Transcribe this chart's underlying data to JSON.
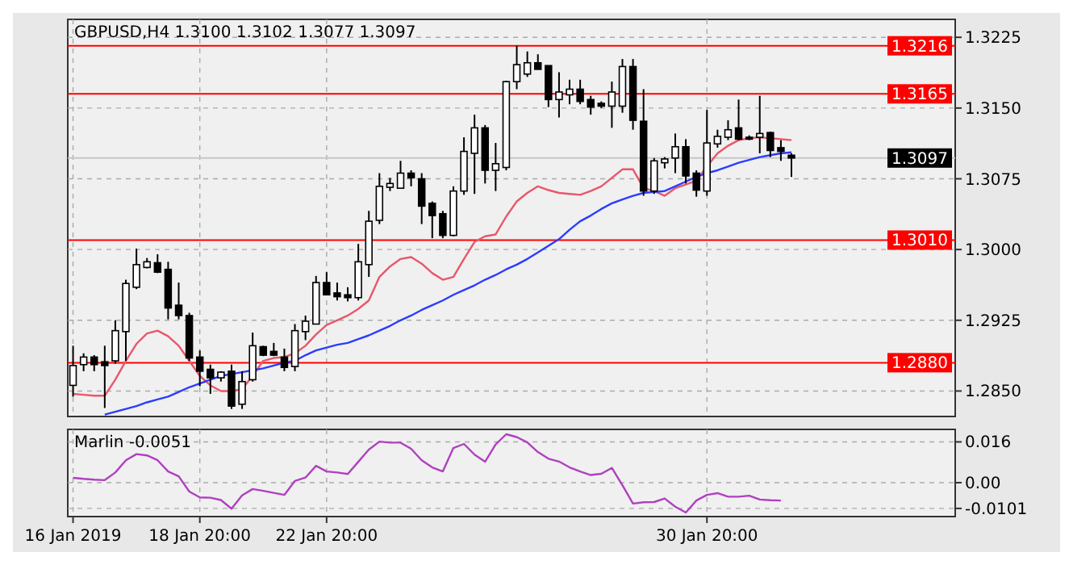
{
  "chart_data": [
    {
      "type": "candlestick",
      "title": "GBPUSD,H4 1.3100 1.3102 1.3077 1.3097",
      "grid": true,
      "tick_labels": "y",
      "categories": [
        null,
        null,
        null,
        null,
        null,
        null,
        null,
        null,
        null,
        null,
        null,
        null,
        null,
        null,
        null,
        null,
        null,
        null,
        null,
        null,
        null,
        null,
        null,
        null,
        null,
        null,
        null,
        null,
        null,
        null,
        null,
        null,
        null,
        null,
        null,
        null,
        null,
        null,
        null,
        null,
        null,
        null,
        null,
        null,
        null,
        null,
        null,
        null,
        null,
        null,
        null,
        null,
        null,
        null,
        null,
        null,
        null,
        null,
        null,
        null,
        null,
        null,
        null,
        null,
        null,
        null,
        null,
        null,
        null,
        null,
        null,
        null,
        null,
        null,
        null,
        null,
        null,
        null,
        null,
        null,
        null,
        null,
        null,
        null
      ],
      "ylim": [
        1.2823,
        1.3244
      ],
      "yticks": [
        {
          "value": 1.285,
          "label": "1.2850"
        },
        {
          "value": 1.2925,
          "label": "1.2925"
        },
        {
          "value": 1.3,
          "label": "1.3000"
        },
        {
          "value": 1.3075,
          "label": "1.3075"
        },
        {
          "value": 1.315,
          "label": "1.3150"
        },
        {
          "value": 1.3225,
          "label": "1.3225"
        }
      ],
      "ohlc": [
        [
          1.2856,
          1.2898,
          1.2844,
          1.2877
        ],
        [
          1.2878,
          1.289,
          1.2871,
          1.2886
        ],
        [
          1.2886,
          1.2888,
          1.2871,
          1.2878
        ],
        [
          1.2881,
          1.2898,
          1.2832,
          1.2877
        ],
        [
          1.2882,
          1.2925,
          1.2879,
          1.2914
        ],
        [
          1.2913,
          1.2968,
          1.2882,
          1.2964
        ],
        [
          1.296,
          1.3001,
          1.2958,
          1.2984
        ],
        [
          1.2981,
          1.2991,
          1.298,
          1.2987
        ],
        [
          1.2986,
          1.2995,
          1.2975,
          1.2976
        ],
        [
          1.2979,
          1.2987,
          1.2926,
          1.2938
        ],
        [
          1.2941,
          1.2965,
          1.2926,
          1.293
        ],
        [
          1.293,
          1.2933,
          1.2882,
          1.2885
        ],
        [
          1.2886,
          1.2893,
          1.2855,
          1.2871
        ],
        [
          1.2873,
          1.2878,
          1.2847,
          1.2864
        ],
        [
          1.2864,
          1.2871,
          1.286,
          1.287
        ],
        [
          1.2871,
          1.2878,
          1.2831,
          1.2834
        ],
        [
          1.2836,
          1.2871,
          1.2831,
          1.286
        ],
        [
          1.2862,
          1.2912,
          1.286,
          1.2898
        ],
        [
          1.2897,
          1.2898,
          1.2887,
          1.2888
        ],
        [
          1.2892,
          1.2901,
          1.2887,
          1.2888
        ],
        [
          1.2886,
          1.2895,
          1.2871,
          1.2875
        ],
        [
          1.2876,
          1.2921,
          1.2871,
          1.2914
        ],
        [
          1.2913,
          1.293,
          1.2904,
          1.2924
        ],
        [
          1.2921,
          1.2972,
          1.2921,
          1.2965
        ],
        [
          1.2965,
          1.2976,
          1.2952,
          1.2952
        ],
        [
          1.2954,
          1.2965,
          1.2946,
          1.295
        ],
        [
          1.2952,
          1.296,
          1.2945,
          1.2949
        ],
        [
          1.2949,
          1.3006,
          1.2946,
          1.2987
        ],
        [
          1.2984,
          1.3041,
          1.2971,
          1.303
        ],
        [
          1.3031,
          1.3081,
          1.3027,
          1.3067
        ],
        [
          1.3066,
          1.3076,
          1.3062,
          1.307
        ],
        [
          1.3065,
          1.3094,
          1.3065,
          1.3081
        ],
        [
          1.3081,
          1.3084,
          1.3067,
          1.3076
        ],
        [
          1.3075,
          1.3081,
          1.3027,
          1.3046
        ],
        [
          1.3049,
          1.3051,
          1.3012,
          1.3036
        ],
        [
          1.3038,
          1.3041,
          1.3012,
          1.3015
        ],
        [
          1.3015,
          1.3067,
          1.3014,
          1.3062
        ],
        [
          1.3062,
          1.3119,
          1.3058,
          1.3104
        ],
        [
          1.3102,
          1.3143,
          1.3059,
          1.3129
        ],
        [
          1.3129,
          1.3132,
          1.307,
          1.3084
        ],
        [
          1.3084,
          1.3113,
          1.3062,
          1.3091
        ],
        [
          1.3087,
          1.3179,
          1.3084,
          1.3178
        ],
        [
          1.3178,
          1.3216,
          1.317,
          1.3196
        ],
        [
          1.3186,
          1.321,
          1.3183,
          1.3198
        ],
        [
          1.3198,
          1.3207,
          1.3191,
          1.3191
        ],
        [
          1.3195,
          1.3195,
          1.3151,
          1.3159
        ],
        [
          1.3159,
          1.3188,
          1.314,
          1.3167
        ],
        [
          1.3164,
          1.318,
          1.3154,
          1.317
        ],
        [
          1.317,
          1.318,
          1.3154,
          1.3157
        ],
        [
          1.3159,
          1.3163,
          1.3143,
          1.3151
        ],
        [
          1.3155,
          1.3157,
          1.315,
          1.3152
        ],
        [
          1.3152,
          1.3178,
          1.3129,
          1.3167
        ],
        [
          1.3152,
          1.3202,
          1.3145,
          1.3194
        ],
        [
          1.3194,
          1.3202,
          1.3127,
          1.3137
        ],
        [
          1.3136,
          1.317,
          1.3057,
          1.3062
        ],
        [
          1.3062,
          1.3097,
          1.3059,
          1.3094
        ],
        [
          1.3092,
          1.3098,
          1.3086,
          1.3096
        ],
        [
          1.3097,
          1.3123,
          1.3081,
          1.3109
        ],
        [
          1.3109,
          1.3117,
          1.307,
          1.3078
        ],
        [
          1.3081,
          1.3084,
          1.3056,
          1.3063
        ],
        [
          1.3062,
          1.3148,
          1.3057,
          1.3113
        ],
        [
          1.3112,
          1.3127,
          1.3108,
          1.312
        ],
        [
          1.3119,
          1.3137,
          1.3116,
          1.3127
        ],
        [
          1.3129,
          1.3159,
          1.3116,
          1.3117
        ],
        [
          1.3119,
          1.3121,
          1.3116,
          1.3117
        ],
        [
          1.3119,
          1.3163,
          1.3102,
          1.3123
        ],
        [
          1.3124,
          1.3125,
          1.3098,
          1.3105
        ],
        [
          1.3108,
          1.3116,
          1.3094,
          1.3104
        ],
        [
          1.31,
          1.3102,
          1.3077,
          1.3097
        ],
        null,
        null,
        null,
        null,
        null,
        null,
        null,
        null,
        null,
        null,
        null,
        null,
        null,
        null,
        null
      ],
      "series": [
        {
          "type": "line",
          "color": "#e8576a",
          "values": [
            1.2847,
            1.2846,
            1.2845,
            1.2845,
            1.2862,
            1.2882,
            1.29,
            1.2911,
            1.2914,
            1.2908,
            1.2898,
            1.2882,
            1.2866,
            1.2856,
            1.285,
            1.285,
            1.2852,
            1.2866,
            1.2882,
            1.2885,
            1.2886,
            1.289,
            1.2898,
            1.291,
            1.292,
            1.2925,
            1.293,
            1.2937,
            1.2946,
            1.2971,
            1.2982,
            1.299,
            1.2992,
            1.2985,
            1.2975,
            1.2968,
            1.2971,
            1.299,
            1.3008,
            1.3014,
            1.3016,
            1.3035,
            1.3051,
            1.306,
            1.3067,
            1.3063,
            1.306,
            1.3059,
            1.3058,
            1.3062,
            1.3067,
            1.3076,
            1.3085,
            1.3085,
            1.3065,
            1.3062,
            1.3057,
            1.3065,
            1.3069,
            1.3073,
            1.3088,
            1.3102,
            1.311,
            1.3116,
            1.3118,
            1.3119,
            1.3118,
            1.3117,
            1.3116,
            null,
            null,
            null,
            null,
            null,
            null,
            null,
            null,
            null,
            null,
            null,
            null,
            null,
            null,
            null
          ]
        },
        {
          "type": "line",
          "color": "#2a3cff",
          "values": [
            null,
            null,
            null,
            1.2825,
            1.2828,
            1.2831,
            1.2834,
            1.2838,
            1.2841,
            1.2844,
            1.2849,
            1.2854,
            1.2858,
            1.2862,
            1.2866,
            1.2868,
            1.287,
            1.2872,
            1.2874,
            1.2877,
            1.288,
            1.2882,
            1.2888,
            1.2893,
            1.2896,
            1.2899,
            1.2901,
            1.2905,
            1.2909,
            1.2914,
            1.2919,
            1.2925,
            1.293,
            1.2936,
            1.2941,
            1.2946,
            1.2952,
            1.2957,
            1.2962,
            1.2968,
            1.2973,
            1.2979,
            1.2984,
            1.299,
            1.2997,
            1.3004,
            1.3011,
            1.3021,
            1.303,
            1.3036,
            1.3043,
            1.3049,
            1.3053,
            1.3057,
            1.306,
            1.3061,
            1.3062,
            1.3067,
            1.3072,
            1.3077,
            1.3081,
            1.3084,
            1.3088,
            1.3092,
            1.3095,
            1.3098,
            1.31,
            1.3102,
            1.3103,
            null,
            null,
            null,
            null,
            null,
            null,
            null,
            null,
            null,
            null,
            null,
            null,
            null,
            null,
            null
          ]
        }
      ],
      "ref_lines": [
        {
          "axis": "y",
          "value": 1.3216,
          "label": "1.3216",
          "color": "#ff0000"
        },
        {
          "axis": "y",
          "value": 1.3165,
          "label": "1.3165",
          "color": "#ff0000"
        },
        {
          "axis": "y",
          "value": 1.301,
          "label": "1.3010",
          "color": "#ff0000"
        },
        {
          "axis": "y",
          "value": 1.288,
          "label": "1.2880",
          "color": "#ff0000"
        },
        {
          "axis": "y",
          "value": 1.3097,
          "label": "1.3097",
          "color": "#c8c8c8"
        }
      ]
    },
    {
      "type": "line",
      "title": "Marlin -0.0051",
      "grid": true,
      "categories": [
        "16 Jan 2019",
        null,
        null,
        null,
        null,
        null,
        null,
        null,
        null,
        null,
        null,
        null,
        "18 Jan 20:00",
        null,
        null,
        null,
        null,
        null,
        null,
        null,
        null,
        null,
        null,
        null,
        "22 Jan 20:00",
        null,
        null,
        null,
        null,
        null,
        null,
        null,
        null,
        null,
        null,
        null,
        null,
        null,
        null,
        null,
        null,
        null,
        null,
        null,
        null,
        null,
        null,
        null,
        null,
        null,
        null,
        null,
        null,
        null,
        null,
        null,
        null,
        null,
        null,
        null,
        "30 Jan 20:00",
        null,
        null,
        null,
        null,
        null,
        null,
        null,
        null,
        null,
        null,
        null,
        null,
        null,
        null,
        null,
        null,
        null,
        null,
        null,
        null,
        null,
        null,
        null
      ],
      "ylim": [
        -0.0133,
        0.0209
      ],
      "yticks": [
        {
          "value": -0.0101,
          "label": "-0.0101"
        },
        {
          "value": 0,
          "label": "0.00"
        },
        {
          "value": 0.016,
          "label": "0.016"
        }
      ],
      "series": [
        {
          "color": "#b040c0",
          "values": [
            0.0019,
            0.0015,
            0.0012,
            0.001,
            0.004,
            0.0088,
            0.0112,
            0.0107,
            0.0088,
            0.0044,
            0.0025,
            -0.0035,
            -0.0058,
            -0.0059,
            -0.0068,
            -0.0102,
            -0.005,
            -0.0025,
            -0.0032,
            -0.004,
            -0.0048,
            0.0007,
            0.002,
            0.0066,
            0.0044,
            0.004,
            0.0034,
            0.0082,
            0.013,
            0.0161,
            0.0157,
            0.0157,
            0.0133,
            0.0088,
            0.006,
            0.0044,
            0.0136,
            0.0152,
            0.011,
            0.0082,
            0.015,
            0.019,
            0.0179,
            0.0158,
            0.012,
            0.0094,
            0.0083,
            0.006,
            0.0044,
            0.003,
            0.0035,
            0.0058,
            -0.001,
            -0.0082,
            -0.0077,
            -0.0076,
            -0.0062,
            -0.0094,
            -0.0117,
            -0.007,
            -0.0048,
            -0.0041,
            -0.0055,
            -0.0055,
            -0.0051,
            -0.0066,
            -0.0069,
            -0.007,
            null,
            null,
            null,
            null,
            null,
            null,
            null,
            null,
            null,
            null,
            null,
            null,
            null,
            null,
            null,
            null
          ]
        }
      ]
    }
  ]
}
